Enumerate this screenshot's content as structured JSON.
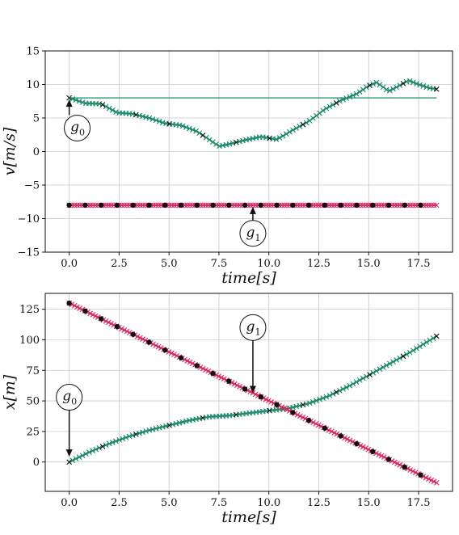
{
  "colors": {
    "green": "#1a8a6a",
    "red": "#e0245e",
    "marker": "#111111",
    "grid": "#c8c8c8"
  },
  "chart_data": [
    {
      "type": "line",
      "ylabel_main": "v",
      "ylabel_unit": "[m/s]",
      "xlabel_main": "time",
      "xlabel_unit": "[s]",
      "xlim": [
        -1.2,
        19.2
      ],
      "ylim": [
        -15,
        15
      ],
      "xticks": [
        0.0,
        2.5,
        5.0,
        7.5,
        10.0,
        12.5,
        15.0,
        17.5
      ],
      "xtick_labels": [
        "0.0",
        "2.5",
        "5.0",
        "7.5",
        "10.0",
        "12.5",
        "15.0",
        "17.5"
      ],
      "yticks": [
        -15,
        -10,
        -5,
        0,
        5,
        10,
        15
      ],
      "ytick_labels": [
        "−15",
        "−10",
        "−5",
        "0",
        "5",
        "10",
        "15"
      ],
      "grid": true,
      "series": [
        {
          "color": "green",
          "marker": "x",
          "x": [
            0.0,
            0.8,
            1.6,
            2.4,
            3.2,
            4.0,
            4.8,
            5.6,
            6.4,
            7.0,
            7.5,
            8.0,
            8.8,
            9.6,
            10.4,
            11.2,
            12.0,
            12.8,
            13.6,
            14.4,
            15.0,
            15.4,
            16.0,
            16.4,
            17.0,
            17.5,
            18.0,
            18.4
          ],
          "y": [
            8.0,
            7.2,
            7.1,
            5.8,
            5.6,
            5.0,
            4.2,
            3.9,
            3.0,
            1.8,
            0.8,
            1.1,
            1.7,
            2.2,
            1.8,
            3.2,
            4.5,
            6.3,
            7.6,
            8.6,
            9.8,
            10.3,
            9.0,
            9.6,
            10.6,
            10.0,
            9.5,
            9.3
          ]
        },
        {
          "color": "green",
          "marker": "none",
          "x": [
            0.0,
            18.4
          ],
          "y": [
            8.0,
            8.0
          ]
        },
        {
          "color": "red",
          "marker": "x-dots",
          "x": [
            0.0,
            18.4
          ],
          "y": [
            -8.0,
            -8.0
          ],
          "dot_x": [
            0.0,
            0.8,
            1.6,
            2.4,
            3.2,
            4.0,
            4.8,
            5.6,
            6.4,
            7.2,
            8.0,
            8.8,
            9.6,
            10.4,
            11.2,
            12.0,
            12.8,
            13.6,
            14.4,
            15.2,
            16.0,
            16.8,
            17.6
          ]
        }
      ],
      "annotations": [
        {
          "label": "g",
          "sub": "0",
          "arrow_to": [
            0.0,
            8.0
          ],
          "text_at": [
            0.4,
            3.5
          ]
        },
        {
          "label": "g",
          "sub": "1",
          "arrow_to": [
            9.2,
            -8.0
          ],
          "text_at": [
            9.2,
            -12.2
          ]
        }
      ]
    },
    {
      "type": "line",
      "ylabel_main": "x",
      "ylabel_unit": "[m]",
      "xlabel_main": "time",
      "xlabel_unit": "[s]",
      "xlim": [
        -1.2,
        19.2
      ],
      "ylim": [
        -24,
        138
      ],
      "xticks": [
        0.0,
        2.5,
        5.0,
        7.5,
        10.0,
        12.5,
        15.0,
        17.5
      ],
      "xtick_labels": [
        "0.0",
        "2.5",
        "5.0",
        "7.5",
        "10.0",
        "12.5",
        "15.0",
        "17.5"
      ],
      "yticks": [
        0,
        25,
        50,
        75,
        100,
        125
      ],
      "ytick_labels": [
        "0",
        "25",
        "50",
        "75",
        "100",
        "125"
      ],
      "grid": true,
      "series": [
        {
          "color": "green",
          "marker": "x",
          "x": [
            0.0,
            1.0,
            2.0,
            3.0,
            4.0,
            5.0,
            6.0,
            7.0,
            8.0,
            9.0,
            10.0,
            11.0,
            12.0,
            13.0,
            14.0,
            15.0,
            16.0,
            17.0,
            18.4
          ],
          "y": [
            0,
            8,
            15,
            21,
            26,
            30,
            34,
            37,
            38,
            40,
            42,
            44,
            48,
            54,
            62,
            71,
            80,
            89,
            103
          ]
        },
        {
          "color": "red",
          "marker": "x-dots",
          "x": [
            0.0,
            18.4
          ],
          "y": [
            130,
            -17
          ],
          "dot_x": [
            0.0,
            0.8,
            1.6,
            2.4,
            3.2,
            4.0,
            4.8,
            5.6,
            6.4,
            7.2,
            8.0,
            8.8,
            9.6,
            10.4,
            11.2,
            12.0,
            12.8,
            13.6,
            14.4,
            15.2,
            16.0,
            16.8,
            17.6
          ]
        }
      ],
      "annotations": [
        {
          "label": "g",
          "sub": "0",
          "arrow_to": [
            0.0,
            3.0
          ],
          "text_at": [
            0.0,
            53.0
          ]
        },
        {
          "label": "g",
          "sub": "1",
          "arrow_to": [
            9.2,
            55.0
          ],
          "text_at": [
            9.2,
            110.0
          ]
        }
      ]
    }
  ]
}
